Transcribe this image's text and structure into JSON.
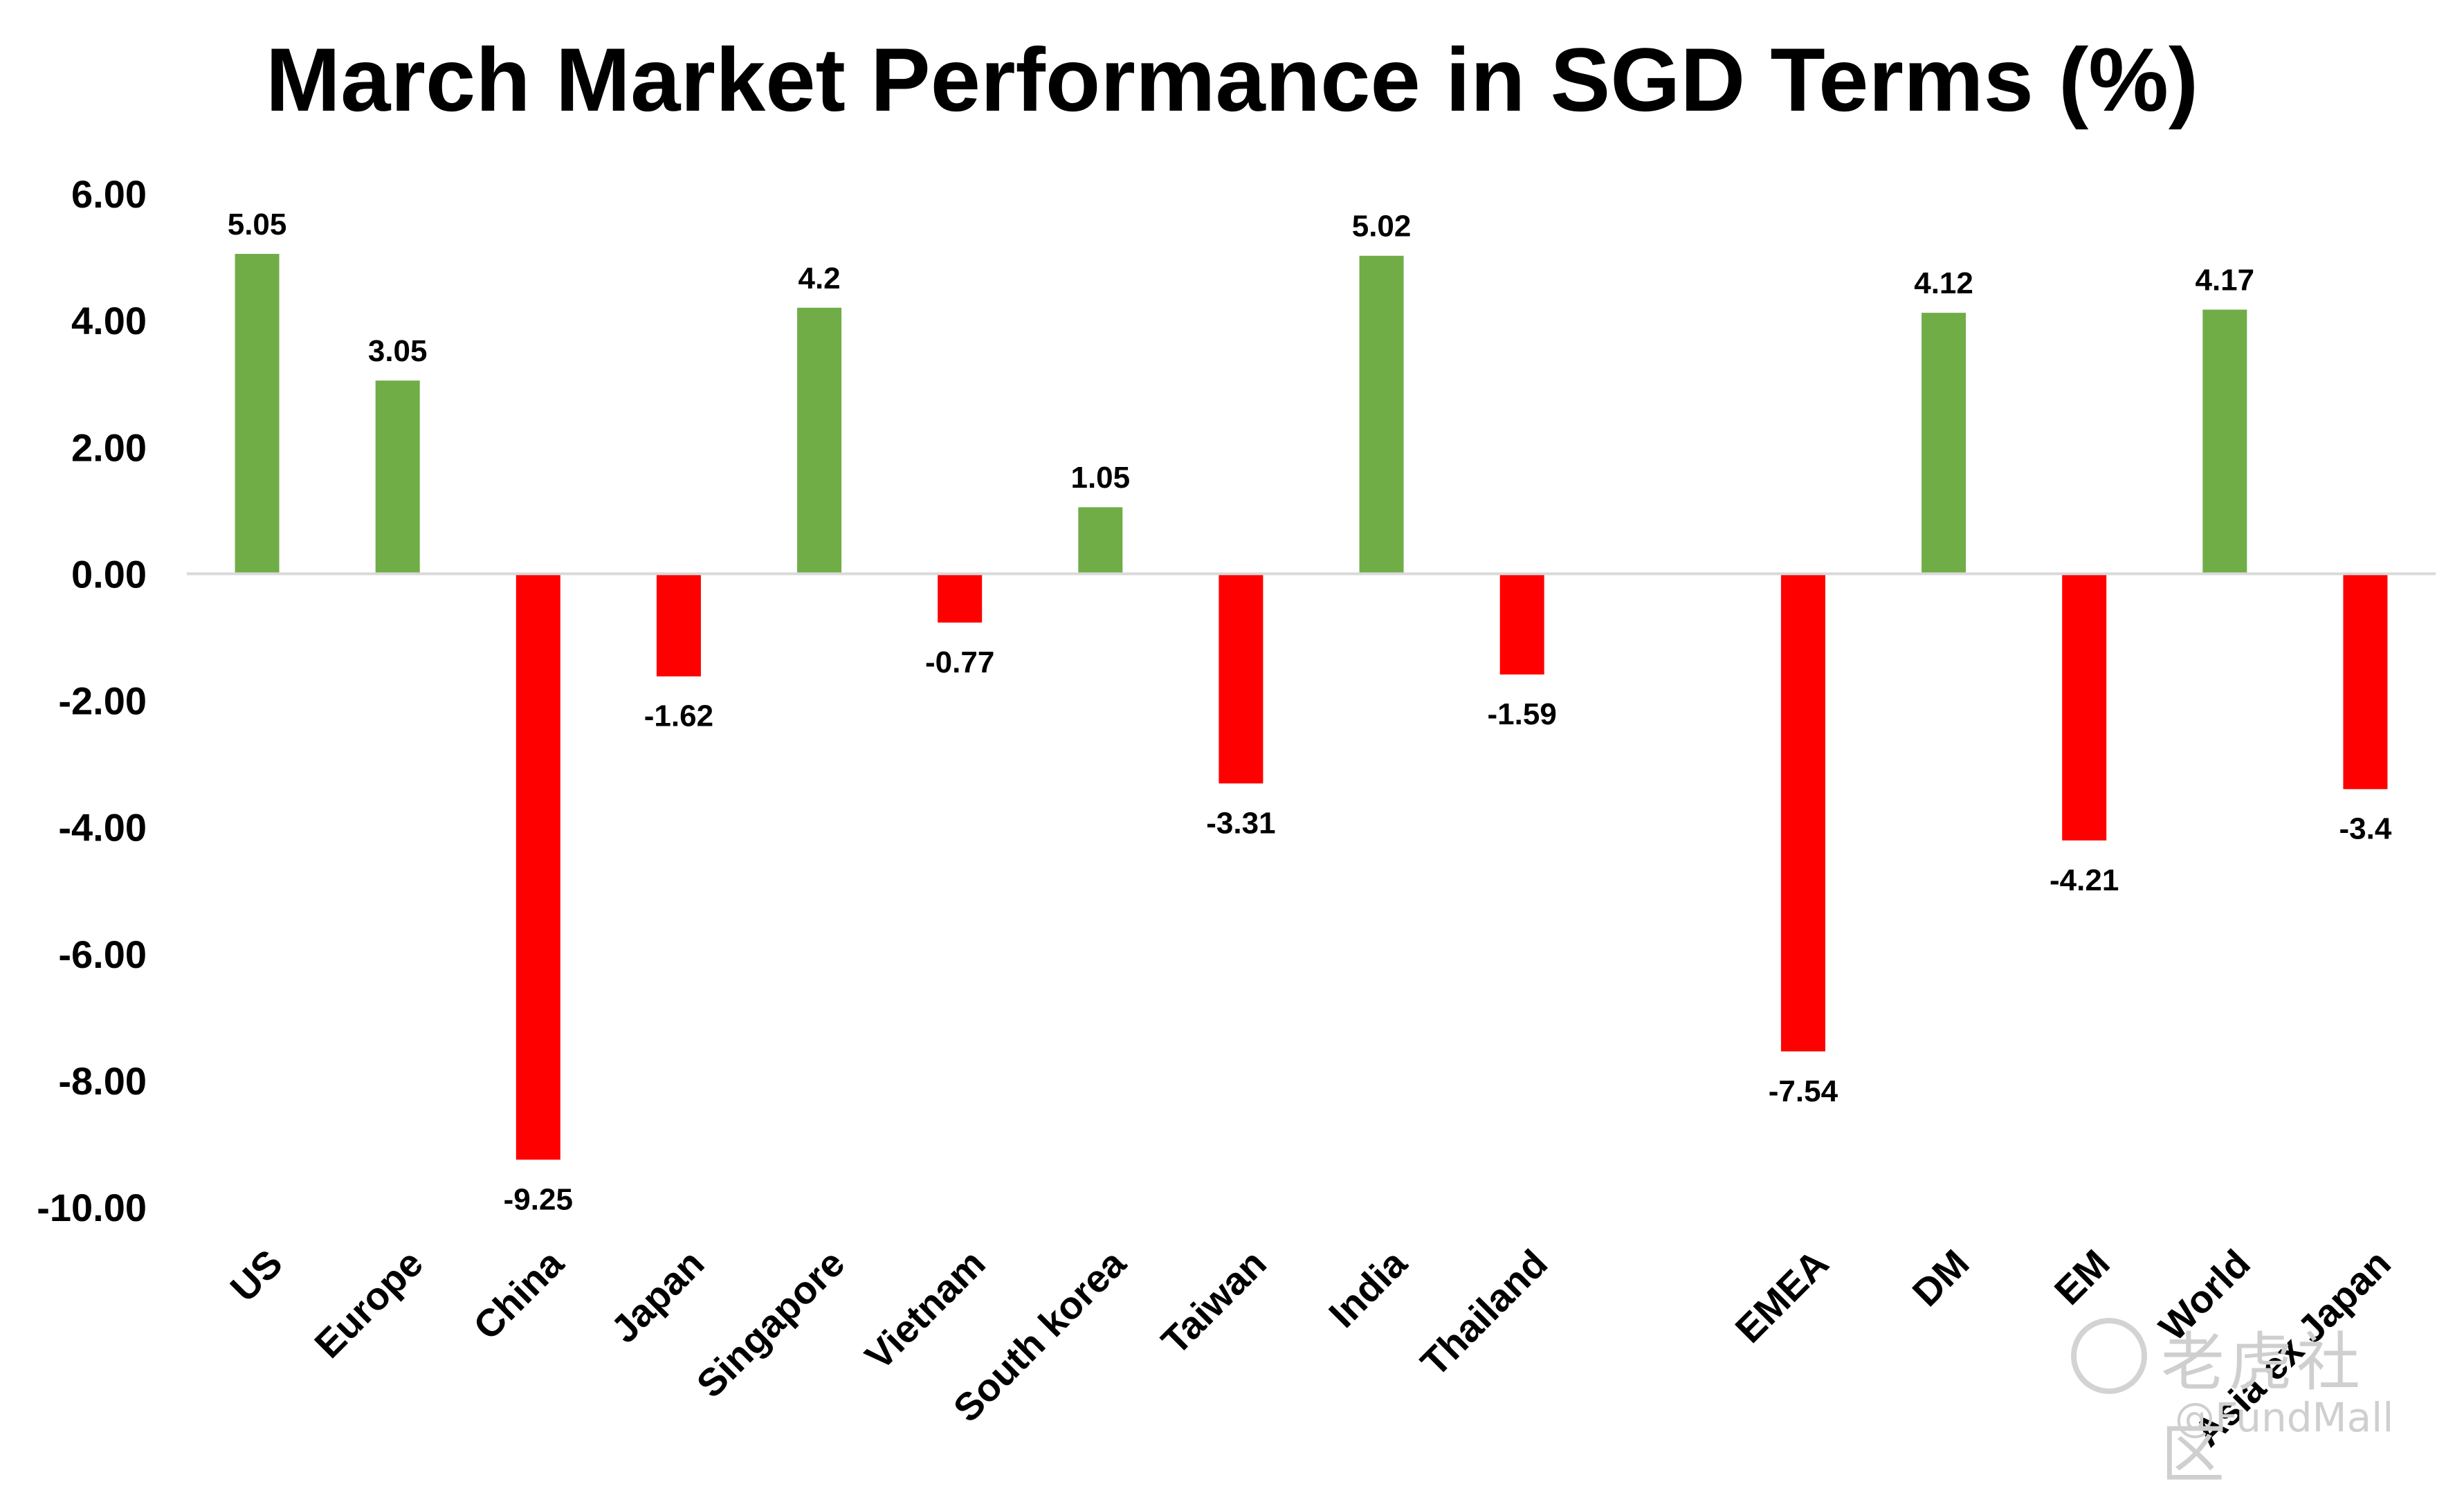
{
  "chart_data": {
    "type": "bar",
    "title": "March Market Performance in SGD Terms (%)",
    "xlabel": "",
    "ylabel": "",
    "ylim": [
      -10,
      6
    ],
    "yticks": [
      "6.00",
      "4.00",
      "2.00",
      "0.00",
      "-2.00",
      "-4.00",
      "-6.00",
      "-8.00",
      "-10.00"
    ],
    "ytick_values": [
      6,
      4,
      2,
      0,
      -2,
      -4,
      -6,
      -8,
      -10
    ],
    "categories": [
      "US",
      "Europe",
      "China",
      "Japan",
      "Singapore",
      "Vietnam",
      "South korea",
      "Taiwan",
      "India",
      "Thailand",
      "",
      "EMEA",
      "DM",
      "EM",
      "World",
      "Asia ex Japan"
    ],
    "values": [
      5.05,
      3.05,
      -9.25,
      -1.62,
      4.2,
      -0.77,
      1.05,
      -3.31,
      5.02,
      -1.59,
      null,
      -7.54,
      4.12,
      -4.21,
      4.17,
      -3.4
    ],
    "data_labels": [
      "5.05",
      "3.05",
      "-9.25",
      "-1.62",
      "4.2",
      "-0.77",
      "1.05",
      "-3.31",
      "5.02",
      "-1.59",
      "",
      "-7.54",
      "4.12",
      "-4.21",
      "4.17",
      "-3.4"
    ],
    "colors": {
      "positive": "#70ad47",
      "negative": "#ff0000",
      "axis": "#d9d9d9"
    },
    "grid": false,
    "legend": "none"
  },
  "watermark": {
    "brand": "老虎社区",
    "handle": "@FundMall"
  }
}
